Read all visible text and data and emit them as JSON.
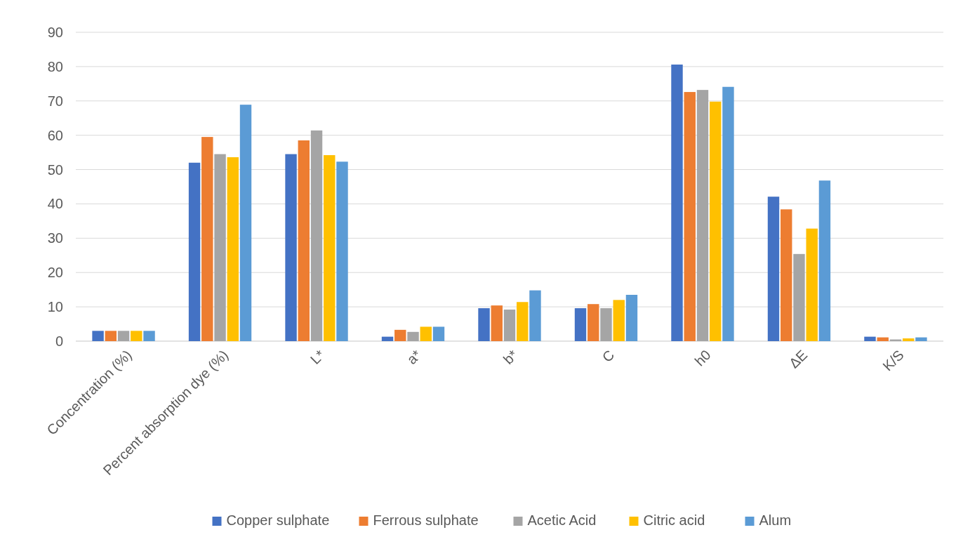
{
  "chart_data": {
    "type": "bar",
    "categories": [
      "Concentration (%)",
      "Percent absorption dye (%)",
      "L*",
      "a*",
      "b*",
      "C",
      "h0",
      "ΔE",
      "K/S"
    ],
    "series": [
      {
        "name": "Copper sulphate",
        "color": "#4472c4",
        "values": [
          3,
          52,
          54.5,
          1.3,
          9.6,
          9.6,
          80.6,
          42.1,
          1.3
        ]
      },
      {
        "name": "Ferrous sulphate",
        "color": "#ed7d31",
        "values": [
          3,
          59.5,
          58.5,
          3.3,
          10.4,
          10.8,
          72.6,
          38.4,
          1.1
        ]
      },
      {
        "name": "Acetic Acid",
        "color": "#a5a5a5",
        "values": [
          3,
          54.5,
          61.4,
          2.7,
          9.2,
          9.6,
          73.2,
          25.4,
          0.5
        ]
      },
      {
        "name": "Citric acid",
        "color": "#ffc000",
        "values": [
          3,
          53.6,
          54.2,
          4.2,
          11.4,
          12,
          69.8,
          32.8,
          0.8
        ]
      },
      {
        "name": "Alum",
        "color": "#5b9bd5",
        "values": [
          3,
          68.9,
          52.3,
          4.2,
          14.8,
          13.5,
          74.1,
          46.8,
          1.1
        ]
      }
    ],
    "ylim": [
      0,
      90
    ],
    "yticks": [
      0,
      10,
      20,
      30,
      40,
      50,
      60,
      70,
      80,
      90
    ],
    "grid": "y",
    "legend": "bottom"
  }
}
